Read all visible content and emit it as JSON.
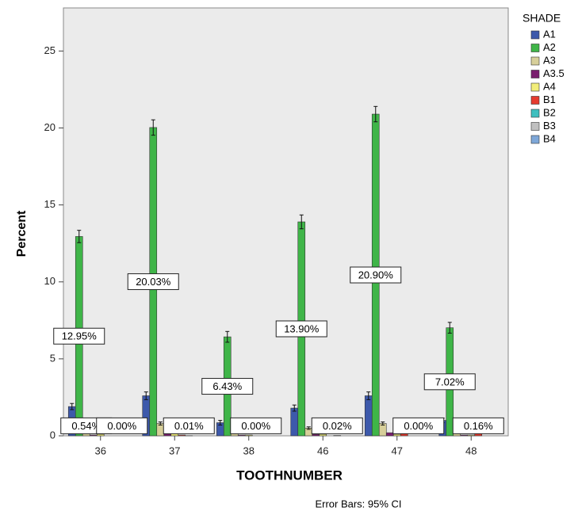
{
  "chart_data": {
    "type": "bar",
    "y_label": "Percent",
    "x_label": "TOOTHNUMBER",
    "legend_title": "SHADE",
    "note": "Error Bars: 95% CI",
    "categories": [
      "36",
      "37",
      "38",
      "46",
      "47",
      "48"
    ],
    "ylim": [
      0,
      27.8
    ],
    "yticks": [
      0,
      5,
      10,
      15,
      20,
      25
    ],
    "legend_position": "right",
    "series": [
      {
        "name": "A1",
        "color": "#3d59ab",
        "values": [
          1.9,
          2.6,
          0.85,
          1.8,
          2.6,
          1.0
        ],
        "errors": [
          0.2,
          0.25,
          0.15,
          0.2,
          0.25,
          0.15
        ]
      },
      {
        "name": "A2",
        "color": "#3fb548",
        "values": [
          12.95,
          20.03,
          6.43,
          13.9,
          20.9,
          7.02
        ],
        "errors": [
          0.4,
          0.5,
          0.35,
          0.45,
          0.5,
          0.35
        ],
        "value_labels": [
          "12.95%",
          "20.03%",
          "6.43%",
          "13.90%",
          "20.90%",
          "7.02%"
        ]
      },
      {
        "name": "A3",
        "color": "#d7cf9a",
        "values": [
          0.54,
          0.8,
          0.2,
          0.5,
          0.8,
          0.3
        ],
        "errors": [
          0.08,
          0.1,
          0.05,
          0.08,
          0.1,
          0.05
        ],
        "value_labels": [
          "0.54%",
          null,
          null,
          null,
          null,
          null
        ]
      },
      {
        "name": "A3.5",
        "color": "#7a1f6e",
        "values": [
          0.05,
          0.2,
          0.05,
          0.1,
          0.2,
          0.05
        ],
        "errors": [
          null,
          null,
          null,
          null,
          null,
          null
        ]
      },
      {
        "name": "A4",
        "color": "#f2ee7a",
        "values": [
          0.1,
          0.15,
          0.05,
          0.1,
          0.1,
          0.05
        ],
        "errors": [
          null,
          null,
          null,
          null,
          null,
          null
        ]
      },
      {
        "name": "B1",
        "color": "#e53b2f",
        "values": [
          0,
          0.05,
          0,
          0,
          0.2,
          0.16
        ],
        "errors": [
          null,
          null,
          null,
          null,
          null,
          null
        ],
        "value_labels": [
          null,
          null,
          "0.00%",
          null,
          null,
          "0.16%"
        ]
      },
      {
        "name": "B2",
        "color": "#3fbfbf",
        "values": [
          0,
          0.01,
          0,
          0.02,
          0,
          0
        ],
        "errors": [
          null,
          null,
          null,
          null,
          null,
          null
        ],
        "value_labels": [
          null,
          "0.01%",
          null,
          "0.02%",
          null,
          null
        ]
      },
      {
        "name": "B3",
        "color": "#c0c0c0",
        "values": [
          0,
          0,
          0,
          0,
          0,
          0
        ],
        "errors": [
          null,
          null,
          null,
          null,
          null,
          null
        ],
        "value_labels": [
          "0.00%",
          null,
          null,
          null,
          "0.00%",
          null
        ]
      },
      {
        "name": "B4",
        "color": "#7ea7d8",
        "values": [
          0,
          0,
          0,
          0,
          0,
          0
        ],
        "errors": [
          null,
          null,
          null,
          null,
          null,
          null
        ]
      }
    ]
  }
}
